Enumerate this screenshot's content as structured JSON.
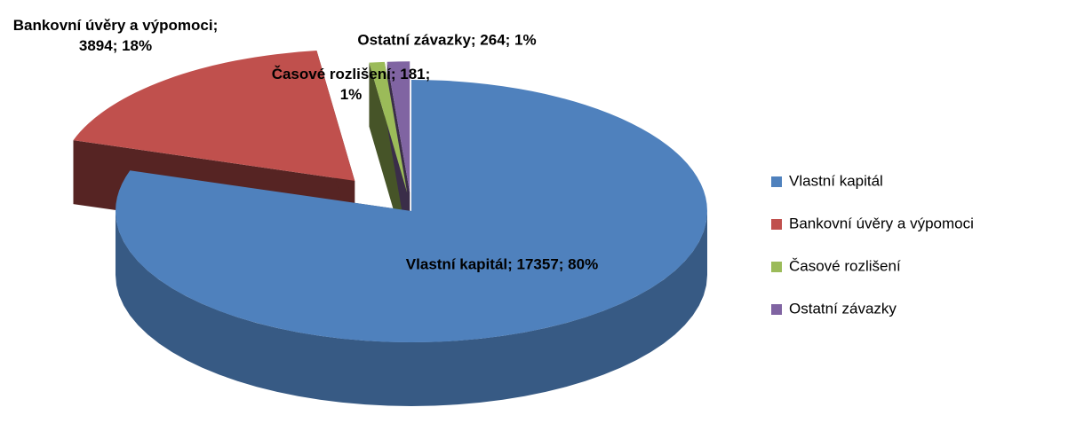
{
  "chart_data": {
    "type": "pie3d",
    "categories": [
      "Vlastní kapitál",
      "Bankovní úvěry a výpomoci",
      "Časové rozlišení",
      "Ostatní závazky"
    ],
    "values": [
      17357,
      3894,
      181,
      264
    ],
    "value_labels": [
      "Vlastní kapitál; 17357; 80%",
      "Bankovní úvěry a výpomoci; 3894; 18%",
      "Časové rozlišení; 181; 1%",
      "Ostatní závazky; 264; 1%"
    ],
    "colors": [
      "#4f81bd",
      "#c0504d",
      "#9bbb59",
      "#8064a2"
    ],
    "legend": "right"
  }
}
